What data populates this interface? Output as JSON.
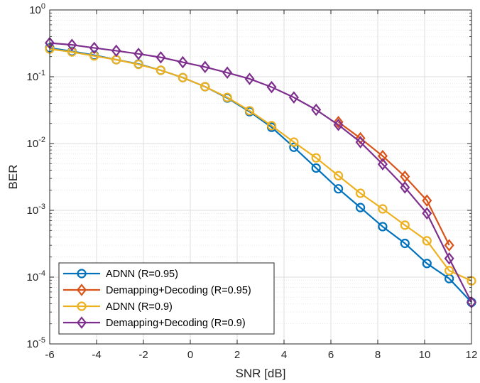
{
  "chart_data": {
    "type": "line",
    "title": "",
    "xlabel": "SNR [dB]",
    "ylabel": "BER",
    "xlim": [
      -6,
      12
    ],
    "ylim": [
      1e-05,
      1
    ],
    "yscale": "log",
    "grid": true,
    "minor_grid": true,
    "legend_position": "bottom-left",
    "x_ticks": [
      -6,
      -4,
      -2,
      0,
      2,
      4,
      6,
      8,
      10,
      12
    ],
    "x_tick_labels": [
      "-6",
      "-4",
      "-2",
      "0",
      "2",
      "4",
      "6",
      "8",
      "10",
      "12"
    ],
    "y_tick_labels": [
      {
        "base": "10",
        "exp": "0",
        "value": 1
      },
      {
        "base": "10",
        "exp": "-1",
        "value": 0.1
      },
      {
        "base": "10",
        "exp": "-2",
        "value": 0.01
      },
      {
        "base": "10",
        "exp": "-3",
        "value": 0.001
      },
      {
        "base": "10",
        "exp": "-4",
        "value": 0.0001
      },
      {
        "base": "10",
        "exp": "-5",
        "value": 1e-05
      }
    ],
    "series": [
      {
        "name": "ADNN (R=0.95)",
        "color": "#0072BD",
        "marker": "circle",
        "x": [
          -6,
          -5.05,
          -4.1,
          -3.16,
          -2.21,
          -1.26,
          -0.32,
          0.63,
          1.58,
          2.53,
          3.47,
          4.42,
          5.37,
          6.32,
          7.26,
          8.21,
          9.16,
          10.1,
          11.05,
          12
        ],
        "y": [
          0.27,
          0.24,
          0.21,
          0.18,
          0.155,
          0.125,
          0.097,
          0.071,
          0.048,
          0.03,
          0.0175,
          0.0088,
          0.0043,
          0.0021,
          0.0011,
          0.00057,
          0.00032,
          0.00016,
          9.5e-05,
          4.2e-05
        ]
      },
      {
        "name": "Demapping+Decoding (R=0.95)",
        "color": "#D95319",
        "marker": "diamond",
        "x": [
          6.32,
          7.26,
          8.21,
          9.16,
          10.1,
          11.05
        ],
        "y": [
          0.021,
          0.012,
          0.0065,
          0.0032,
          0.0014,
          0.0003
        ]
      },
      {
        "name": "ADNN (R=0.9)",
        "color": "#EDB120",
        "marker": "circle",
        "x": [
          -6,
          -5.05,
          -4.1,
          -3.16,
          -2.21,
          -1.26,
          -0.32,
          0.63,
          1.58,
          2.53,
          3.47,
          4.42,
          5.37,
          6.32,
          7.26,
          8.21,
          9.16,
          10.1,
          11.05,
          12
        ],
        "y": [
          0.26,
          0.235,
          0.205,
          0.18,
          0.153,
          0.125,
          0.097,
          0.071,
          0.049,
          0.031,
          0.0185,
          0.0105,
          0.0061,
          0.0033,
          0.0018,
          0.00105,
          0.0006,
          0.00035,
          0.000125,
          8.8e-05
        ]
      },
      {
        "name": "Demapping+Decoding (R=0.9)",
        "color": "#7E2F8E",
        "marker": "diamond",
        "x": [
          -6,
          -5.05,
          -4.1,
          -3.16,
          -2.21,
          -1.26,
          -0.32,
          0.63,
          1.58,
          2.53,
          3.47,
          4.42,
          5.37,
          6.32,
          7.26,
          8.21,
          9.16,
          10.1,
          11.05,
          12
        ],
        "y": [
          0.32,
          0.3,
          0.27,
          0.245,
          0.22,
          0.195,
          0.165,
          0.14,
          0.115,
          0.093,
          0.07,
          0.049,
          0.032,
          0.019,
          0.0105,
          0.0049,
          0.0022,
          0.0009,
          0.00019,
          4.2e-05
        ]
      }
    ]
  }
}
